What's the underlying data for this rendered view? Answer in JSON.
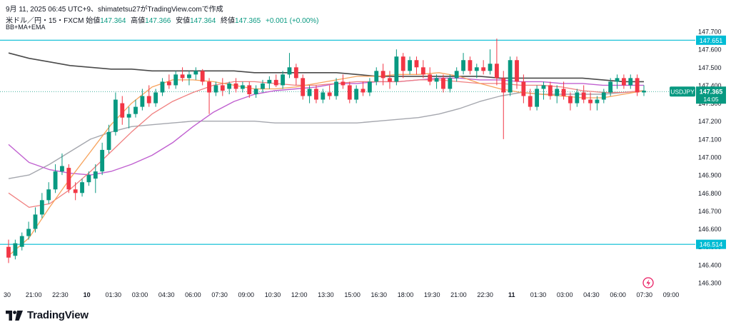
{
  "header": {
    "attribution": "9月 11, 2025 06:45 UTC+9、shimatetsu27がTradingView.comで作成",
    "symbol": "米ドル／円・15・FXCM",
    "open_label": "始値",
    "open_value": "147.364",
    "high_label": "高値",
    "high_value": "147.366",
    "low_label": "安値",
    "low_value": "147.364",
    "close_label": "終値",
    "close_value": "147.365",
    "change": "+0.001 (+0.00%)",
    "indicators": "BB+MA+EMA"
  },
  "branding": {
    "name": "TradingView"
  },
  "colors": {
    "up": "#089981",
    "down": "#f23645",
    "hline": "#00bcd4",
    "bb_basis": "#787b86",
    "bb_band": "#a5a7ae",
    "bb_lower": "#4a4a4a",
    "ma_short": "#f7a35c",
    "ma_long": "#f08080",
    "ema": "#c060d0",
    "price_tag": "#089981",
    "axis_text": "#131722"
  },
  "chart_data": {
    "type": "candlestick",
    "y_axis": {
      "min": 146.3,
      "max": 147.7,
      "ticks": [
        "147.700",
        "147.600",
        "147.500",
        "147.400",
        "147.300",
        "147.200",
        "147.100",
        "147.000",
        "146.900",
        "146.800",
        "146.700",
        "146.600",
        "146.500",
        "146.400",
        "146.300"
      ]
    },
    "x_ticks": [
      "30",
      "21:00",
      "22:30",
      "10",
      "01:30",
      "03:00",
      "04:30",
      "06:00",
      "07:30",
      "09:00",
      "10:30",
      "12:00",
      "13:30",
      "15:00",
      "16:30",
      "18:00",
      "19:30",
      "21:00",
      "22:30",
      "11",
      "01:30",
      "03:00",
      "04:30",
      "06:00",
      "07:30",
      "09:00"
    ],
    "x_tick_bold": [
      "10",
      "11"
    ],
    "horizontal_lines": [
      {
        "value": 147.651,
        "label": "147.651"
      },
      {
        "value": 146.514,
        "label": "146.514"
      }
    ],
    "last_price": {
      "value": 147.365,
      "label": "147.365",
      "symbol": "USDJPY",
      "countdown": "14:05"
    },
    "candles": [
      [
        146.5,
        146.54,
        146.41,
        146.44
      ],
      [
        146.45,
        146.54,
        146.43,
        146.52
      ],
      [
        146.5,
        146.58,
        146.48,
        146.56
      ],
      [
        146.56,
        146.64,
        146.54,
        146.6
      ],
      [
        146.6,
        146.72,
        146.58,
        146.68
      ],
      [
        146.68,
        146.8,
        146.66,
        146.76
      ],
      [
        146.76,
        146.86,
        146.74,
        146.82
      ],
      [
        146.82,
        146.96,
        146.8,
        146.92
      ],
      [
        146.92,
        147.02,
        146.9,
        146.95
      ],
      [
        146.94,
        146.96,
        146.8,
        146.82
      ],
      [
        146.82,
        146.86,
        146.76,
        146.8
      ],
      [
        146.8,
        146.88,
        146.78,
        146.86
      ],
      [
        146.86,
        146.92,
        146.84,
        146.9
      ],
      [
        146.88,
        146.96,
        146.8,
        146.92
      ],
      [
        146.92,
        147.08,
        146.9,
        147.04
      ],
      [
        147.04,
        147.18,
        147.02,
        147.14
      ],
      [
        147.14,
        147.36,
        147.12,
        147.32
      ],
      [
        147.3,
        147.34,
        147.18,
        147.22
      ],
      [
        147.22,
        147.28,
        147.16,
        147.24
      ],
      [
        147.24,
        147.32,
        147.22,
        147.28
      ],
      [
        147.28,
        147.38,
        147.26,
        147.34
      ],
      [
        147.34,
        147.4,
        147.28,
        147.3
      ],
      [
        147.3,
        147.38,
        147.28,
        147.36
      ],
      [
        147.36,
        147.44,
        147.34,
        147.42
      ],
      [
        147.42,
        147.46,
        147.38,
        147.4
      ],
      [
        147.4,
        147.48,
        147.38,
        147.46
      ],
      [
        147.46,
        147.5,
        147.42,
        147.44
      ],
      [
        147.44,
        147.48,
        147.4,
        147.46
      ],
      [
        147.46,
        147.5,
        147.43,
        147.48
      ],
      [
        147.48,
        147.49,
        147.4,
        147.42
      ],
      [
        147.42,
        147.44,
        147.24,
        147.36
      ],
      [
        147.36,
        147.42,
        147.34,
        147.4
      ],
      [
        147.4,
        147.44,
        147.34,
        147.37
      ],
      [
        147.38,
        147.42,
        147.35,
        147.41
      ],
      [
        147.41,
        147.44,
        147.36,
        147.38
      ],
      [
        147.38,
        147.42,
        147.36,
        147.4
      ],
      [
        147.4,
        147.42,
        147.33,
        147.35
      ],
      [
        147.35,
        147.4,
        147.33,
        147.38
      ],
      [
        147.38,
        147.43,
        147.36,
        147.41
      ],
      [
        147.41,
        147.45,
        147.38,
        147.43
      ],
      [
        147.43,
        147.46,
        147.39,
        147.4
      ],
      [
        147.4,
        147.48,
        147.38,
        147.46
      ],
      [
        147.46,
        147.58,
        147.44,
        147.5
      ],
      [
        147.5,
        147.52,
        147.4,
        147.44
      ],
      [
        147.44,
        147.46,
        147.32,
        147.34
      ],
      [
        147.34,
        147.4,
        147.3,
        147.38
      ],
      [
        147.38,
        147.4,
        147.3,
        147.32
      ],
      [
        147.32,
        147.38,
        147.3,
        147.36
      ],
      [
        147.36,
        147.4,
        147.32,
        147.34
      ],
      [
        147.34,
        147.44,
        147.32,
        147.42
      ],
      [
        147.42,
        147.46,
        147.38,
        147.4
      ],
      [
        147.4,
        147.42,
        147.3,
        147.32
      ],
      [
        147.32,
        147.4,
        147.3,
        147.38
      ],
      [
        147.38,
        147.42,
        147.34,
        147.36
      ],
      [
        147.36,
        147.44,
        147.34,
        147.42
      ],
      [
        147.42,
        147.5,
        147.4,
        147.48
      ],
      [
        147.48,
        147.52,
        147.4,
        147.44
      ],
      [
        147.44,
        147.48,
        147.38,
        147.42
      ],
      [
        147.42,
        147.6,
        147.4,
        147.56
      ],
      [
        147.56,
        147.58,
        147.44,
        147.48
      ],
      [
        147.48,
        147.56,
        147.46,
        147.54
      ],
      [
        147.54,
        147.56,
        147.46,
        147.5
      ],
      [
        147.5,
        147.54,
        147.44,
        147.46
      ],
      [
        147.46,
        147.5,
        147.4,
        147.42
      ],
      [
        147.42,
        147.46,
        147.38,
        147.44
      ],
      [
        147.44,
        147.46,
        147.36,
        147.38
      ],
      [
        147.38,
        147.46,
        147.36,
        147.44
      ],
      [
        147.44,
        147.5,
        147.42,
        147.48
      ],
      [
        147.48,
        147.58,
        147.46,
        147.54
      ],
      [
        147.54,
        147.56,
        147.46,
        147.48
      ],
      [
        147.48,
        147.52,
        147.44,
        147.5
      ],
      [
        147.5,
        147.54,
        147.46,
        147.48
      ],
      [
        147.48,
        147.6,
        147.46,
        147.52
      ],
      [
        147.52,
        147.66,
        147.4,
        147.44
      ],
      [
        147.44,
        147.48,
        147.1,
        147.36
      ],
      [
        147.36,
        147.56,
        147.34,
        147.54
      ],
      [
        147.54,
        147.56,
        147.38,
        147.42
      ],
      [
        147.42,
        147.46,
        147.3,
        147.34
      ],
      [
        147.34,
        147.38,
        147.26,
        147.28
      ],
      [
        147.28,
        147.4,
        147.26,
        147.38
      ],
      [
        147.38,
        147.42,
        147.32,
        147.4
      ],
      [
        147.4,
        147.42,
        147.32,
        147.34
      ],
      [
        147.34,
        147.4,
        147.3,
        147.38
      ],
      [
        147.38,
        147.42,
        147.32,
        147.34
      ],
      [
        147.34,
        147.36,
        147.26,
        147.3
      ],
      [
        147.3,
        147.38,
        147.28,
        147.36
      ],
      [
        147.36,
        147.4,
        147.3,
        147.32
      ],
      [
        147.32,
        147.36,
        147.26,
        147.3
      ],
      [
        147.3,
        147.34,
        147.26,
        147.32
      ],
      [
        147.32,
        147.38,
        147.3,
        147.36
      ],
      [
        147.36,
        147.44,
        147.34,
        147.42
      ],
      [
        147.42,
        147.46,
        147.38,
        147.44
      ],
      [
        147.44,
        147.46,
        147.38,
        147.4
      ],
      [
        147.4,
        147.46,
        147.38,
        147.44
      ],
      [
        147.44,
        147.46,
        147.34,
        147.36
      ],
      [
        147.36,
        147.4,
        147.34,
        147.37
      ]
    ],
    "bb_upper": [
      147.58,
      147.55,
      147.53,
      147.51,
      147.5,
      147.49,
      147.49,
      147.48,
      147.48,
      147.48,
      147.48,
      147.48,
      147.47,
      147.47,
      147.47,
      147.47,
      147.47,
      147.46,
      147.45,
      147.45,
      147.45,
      147.45,
      147.45,
      147.45,
      147.44,
      147.44,
      147.44,
      147.44,
      147.44,
      147.43,
      147.42,
      147.42
    ],
    "bb_lower": [
      146.88,
      146.9,
      146.96,
      147.03,
      147.1,
      147.14,
      147.17,
      147.18,
      147.19,
      147.2,
      147.2,
      147.2,
      147.2,
      147.19,
      147.19,
      147.19,
      147.19,
      147.19,
      147.2,
      147.21,
      147.22,
      147.24,
      147.27,
      147.31,
      147.34,
      147.36,
      147.35,
      147.35,
      147.35,
      147.35,
      147.36,
      147.37
    ],
    "ma_long": [
      146.8,
      146.72,
      146.74,
      146.82,
      146.92,
      147.03,
      147.14,
      147.24,
      147.31,
      147.36,
      147.4,
      147.42,
      147.42,
      147.41,
      147.4,
      147.4,
      147.41,
      147.42,
      147.42,
      147.42,
      147.43,
      147.43,
      147.42,
      147.41,
      147.41,
      147.4,
      147.4,
      147.39,
      147.37,
      147.36,
      147.36,
      147.37
    ],
    "ma_short": [
      146.45,
      146.55,
      146.72,
      146.88,
      147.03,
      147.18,
      147.3,
      147.39,
      147.43,
      147.43,
      147.42,
      147.4,
      147.38,
      147.38,
      147.39,
      147.41,
      147.43,
      147.45,
      147.45,
      147.46,
      147.46,
      147.47,
      147.45,
      147.41,
      147.38,
      147.36,
      147.35,
      147.34,
      147.33,
      147.33,
      147.35,
      147.37
    ],
    "ema": [
      147.07,
      146.97,
      146.93,
      146.91,
      146.9,
      146.92,
      146.96,
      147.01,
      147.08,
      147.17,
      147.25,
      147.31,
      147.35,
      147.37,
      147.38,
      147.39,
      147.41,
      147.41,
      147.42,
      147.42,
      147.43,
      147.44,
      147.44,
      147.43,
      147.43,
      147.42,
      147.42,
      147.41,
      147.41,
      147.4,
      147.4,
      147.4
    ]
  }
}
